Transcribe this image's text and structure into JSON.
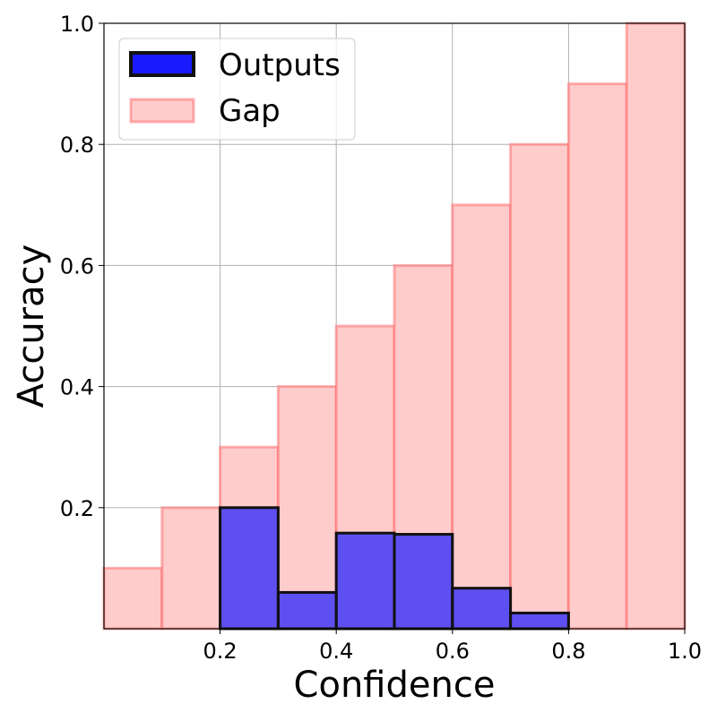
{
  "chart_data": {
    "type": "bar",
    "bins": [
      [
        0.0,
        0.1
      ],
      [
        0.1,
        0.2
      ],
      [
        0.2,
        0.3
      ],
      [
        0.3,
        0.4
      ],
      [
        0.4,
        0.5
      ],
      [
        0.5,
        0.6
      ],
      [
        0.6,
        0.7
      ],
      [
        0.7,
        0.8
      ],
      [
        0.8,
        0.9
      ],
      [
        0.9,
        1.0
      ]
    ],
    "series": [
      {
        "name": "Outputs",
        "values": [
          0.0,
          0.0,
          0.2,
          0.06,
          0.158,
          0.156,
          0.067,
          0.026,
          0.0,
          0.0
        ]
      },
      {
        "name": "Gap",
        "values": [
          0.1,
          0.2,
          0.3,
          0.4,
          0.5,
          0.6,
          0.7,
          0.8,
          0.9,
          1.0
        ]
      }
    ],
    "xlabel": "Confidence",
    "ylabel": "Accuracy",
    "xlim": [
      0,
      1
    ],
    "ylim": [
      0,
      1
    ],
    "xticks": [
      "0.2",
      "0.4",
      "0.6",
      "0.8",
      "1.0"
    ],
    "yticks": [
      "0.2",
      "0.4",
      "0.6",
      "0.8",
      "1.0"
    ],
    "grid": true,
    "legend": "top-left",
    "colors": {
      "outputs_fill": "#1a1aff",
      "outputs_edge": "#111111",
      "gap_fill": "#ffcccc",
      "gap_edge": "#ff6666"
    }
  }
}
